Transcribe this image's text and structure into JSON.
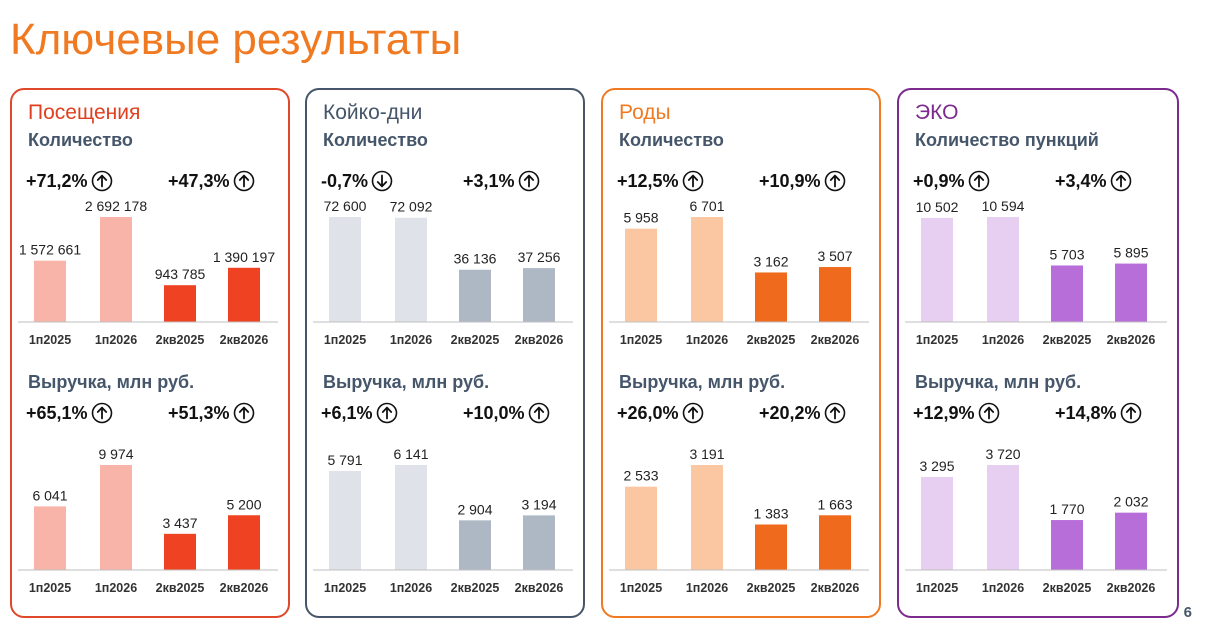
{
  "page": {
    "title": "Ключевые результаты",
    "page_number": "6"
  },
  "panels": [
    {
      "title": "Посещения",
      "border_color": "#E0482B",
      "title_color": "#E0401F",
      "sections": [
        {
          "label": "Количество",
          "growth": [
            {
              "text": "+71,2%",
              "direction": "up"
            },
            {
              "text": "+47,3%",
              "direction": "up"
            }
          ],
          "value_labels": [
            "1 572 661",
            "2 692 178",
            "943 785",
            "1 390 197"
          ]
        },
        {
          "label": "Выручка, млн руб.",
          "growth": [
            {
              "text": "+65,1%",
              "direction": "up"
            },
            {
              "text": "+51,3%",
              "direction": "up"
            }
          ],
          "value_labels": [
            "6 041",
            "9 974",
            "3 437",
            "5 200"
          ]
        }
      ]
    },
    {
      "title": "Койко-дни",
      "border_color": "#46566A",
      "title_color": "#46566A",
      "sections": [
        {
          "label": "Количество",
          "growth": [
            {
              "text": "-0,7%",
              "direction": "down"
            },
            {
              "text": "+3,1%",
              "direction": "up"
            }
          ],
          "value_labels": [
            "72 600",
            "72 092",
            "36 136",
            "37 256"
          ]
        },
        {
          "label": "Выручка, млн руб.",
          "growth": [
            {
              "text": "+6,1%",
              "direction": "up"
            },
            {
              "text": "+10,0%",
              "direction": "up"
            }
          ],
          "value_labels": [
            "5 791",
            "6 141",
            "2 904",
            "3 194"
          ]
        }
      ]
    },
    {
      "title": "Роды",
      "border_color": "#F07A21",
      "title_color": "#F07A21",
      "sections": [
        {
          "label": "Количество",
          "growth": [
            {
              "text": "+12,5%",
              "direction": "up"
            },
            {
              "text": "+10,9%",
              "direction": "up"
            }
          ],
          "value_labels": [
            "5 958",
            "6 701",
            "3 162",
            "3 507"
          ]
        },
        {
          "label": "Выручка, млн руб.",
          "growth": [
            {
              "text": "+26,0%",
              "direction": "up"
            },
            {
              "text": "+20,2%",
              "direction": "up"
            }
          ],
          "value_labels": [
            "2 533",
            "3 191",
            "1 383",
            "1 663"
          ]
        }
      ]
    },
    {
      "title": "ЭКО",
      "border_color": "#7B2A8E",
      "title_color": "#7B2A8E",
      "sections": [
        {
          "label": "Количество пункций",
          "growth": [
            {
              "text": "+0,9%",
              "direction": "up"
            },
            {
              "text": "+3,4%",
              "direction": "up"
            }
          ],
          "value_labels": [
            "10 502",
            "10 594",
            "5 703",
            "5 895"
          ]
        },
        {
          "label": "Выручка, млн руб.",
          "growth": [
            {
              "text": "+12,9%",
              "direction": "up"
            },
            {
              "text": "+14,8%",
              "direction": "up"
            }
          ],
          "value_labels": [
            "3 295",
            "3 720",
            "1 770",
            "2 032"
          ]
        }
      ]
    }
  ],
  "chart_data": [
    {
      "type": "bar",
      "title": "Посещения — Количество",
      "categories": [
        "1п2025",
        "1п2026",
        "2кв2025",
        "2кв2026"
      ],
      "values": [
        1572661,
        2692178,
        943785,
        1390197
      ],
      "colors": [
        "#F8B4A8",
        "#F8B4A8",
        "#EE4222",
        "#EE4222"
      ]
    },
    {
      "type": "bar",
      "title": "Посещения — Выручка, млн руб.",
      "categories": [
        "1п2025",
        "1п2026",
        "2кв2025",
        "2кв2026"
      ],
      "values": [
        6041,
        9974,
        3437,
        5200
      ],
      "colors": [
        "#F8B4A8",
        "#F8B4A8",
        "#EE4222",
        "#EE4222"
      ]
    },
    {
      "type": "bar",
      "title": "Койко-дни — Количество",
      "categories": [
        "1п2025",
        "1п2026",
        "2кв2025",
        "2кв2026"
      ],
      "values": [
        72600,
        72092,
        36136,
        37256
      ],
      "colors": [
        "#DFE3E9",
        "#DFE3E9",
        "#AEB8C4",
        "#AEB8C4"
      ]
    },
    {
      "type": "bar",
      "title": "Койко-дни — Выручка, млн руб.",
      "categories": [
        "1п2025",
        "1п2026",
        "2кв2025",
        "2кв2026"
      ],
      "values": [
        5791,
        6141,
        2904,
        3194
      ],
      "colors": [
        "#DFE3E9",
        "#DFE3E9",
        "#AEB8C4",
        "#AEB8C4"
      ]
    },
    {
      "type": "bar",
      "title": "Роды — Количество",
      "categories": [
        "1п2025",
        "1п2026",
        "2кв2025",
        "2кв2026"
      ],
      "values": [
        5958,
        6701,
        3162,
        3507
      ],
      "colors": [
        "#FBC7A2",
        "#FBC7A2",
        "#F06A1E",
        "#F06A1E"
      ]
    },
    {
      "type": "bar",
      "title": "Роды — Выручка, млн руб.",
      "categories": [
        "1п2025",
        "1п2026",
        "2кв2025",
        "2кв2026"
      ],
      "values": [
        2533,
        3191,
        1383,
        1663
      ],
      "colors": [
        "#FBC7A2",
        "#FBC7A2",
        "#F06A1E",
        "#F06A1E"
      ]
    },
    {
      "type": "bar",
      "title": "ЭКО — Количество пункций",
      "categories": [
        "1п2025",
        "1п2026",
        "2кв2025",
        "2кв2026"
      ],
      "values": [
        10502,
        10594,
        5703,
        5895
      ],
      "colors": [
        "#E6CFF0",
        "#E6CFF0",
        "#B86ED9",
        "#B86ED9"
      ]
    },
    {
      "type": "bar",
      "title": "ЭКО — Выручка, млн руб.",
      "categories": [
        "1п2025",
        "1п2026",
        "2кв2025",
        "2кв2026"
      ],
      "values": [
        3295,
        3720,
        1770,
        2032
      ],
      "colors": [
        "#E6CFF0",
        "#E6CFF0",
        "#B86ED9",
        "#B86ED9"
      ]
    }
  ]
}
